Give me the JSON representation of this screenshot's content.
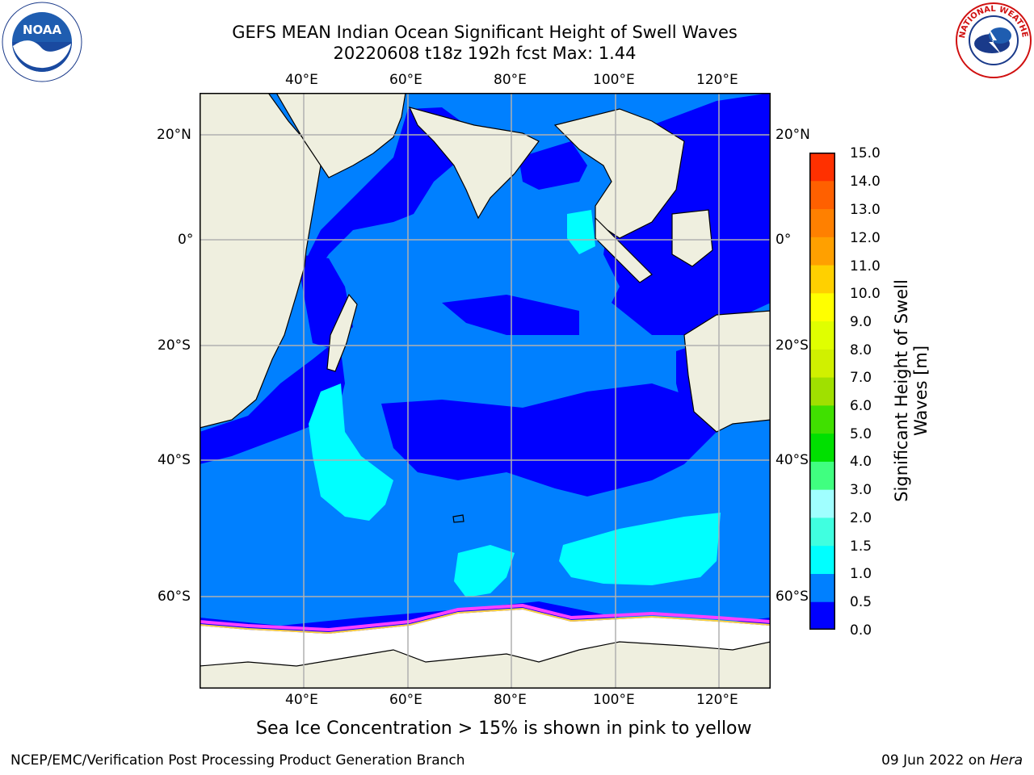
{
  "header": {
    "title_line1": "GEFS MEAN Indian Ocean Significant Height of Swell Waves",
    "title_line2": "20220608 t18z 192h fcst   Max: 1.44"
  },
  "logos": {
    "left": {
      "name": "noaa-logo",
      "text": "NOAA",
      "ring_text": "NATIONAL OCEANIC AND ATMOSPHERIC ADMINISTRATION · U.S. DEPARTMENT OF COMMERCE"
    },
    "right": {
      "name": "nws-logo",
      "ring_text": "NATIONAL WEATHER SERVICE"
    }
  },
  "map": {
    "lon_labels": [
      "40°E",
      "60°E",
      "80°E",
      "100°E",
      "120°E"
    ],
    "lat_labels": [
      "20°N",
      "0°",
      "20°S",
      "40°S",
      "60°S"
    ],
    "lon_range": [
      20,
      130
    ],
    "lat_range": [
      -72,
      26
    ],
    "gridlines": true,
    "projection": "Mercator",
    "colors": {
      "land": "#efefdf",
      "sea_ice_base": "#ffffff",
      "swell_0_0.5": "#0000ff",
      "swell_0.5_1.0": "#0080ff",
      "swell_1.0_1.5": "#00ffff",
      "swell_1.5_2.0": "#40ffe0",
      "ice_edge_pink": "#ff40ff",
      "ice_edge_yellow": "#ffff00"
    },
    "max_value": 1.44
  },
  "colorbar": {
    "ticks": [
      "15.0",
      "14.0",
      "13.0",
      "12.0",
      "11.0",
      "10.0",
      "9.0",
      "8.0",
      "7.0",
      "6.0",
      "5.0",
      "4.0",
      "3.0",
      "2.0",
      "1.5",
      "1.0",
      "0.5",
      "0.0"
    ],
    "colors_bottom_to_top": [
      "#0000ff",
      "#0080ff",
      "#00ffff",
      "#40ffe0",
      "#a0ffff",
      "#40ff80",
      "#00e000",
      "#40e000",
      "#a0e000",
      "#d0f000",
      "#e0ff00",
      "#ffff00",
      "#ffd000",
      "#ffa000",
      "#ff8000",
      "#ff6000",
      "#ff3000"
    ],
    "label_line1": "Significant Height of Swell",
    "label_line2": "Waves [m]"
  },
  "footer": {
    "note": "Sea Ice Concentration > 15% is shown in pink to yellow",
    "left": "NCEP/EMC/Verification Post Processing Product Generation Branch",
    "right_prefix": "09 Jun 2022 on ",
    "right_host": "Hera"
  }
}
